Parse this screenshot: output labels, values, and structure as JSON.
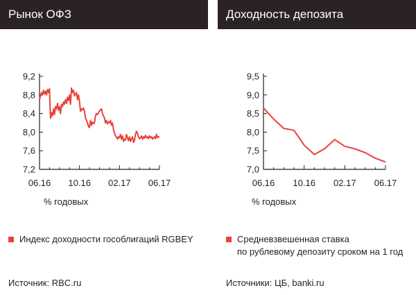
{
  "left": {
    "title": "Рынок ОФЗ",
    "unit": "% годовых",
    "legend": "Индекс доходности гособлигаций RGBEY",
    "source": "Источник: RBC.ru"
  },
  "right": {
    "title": "Доходность депозита",
    "unit": "% годовых",
    "legend_line1": "Средневзвешенная ставка",
    "legend_line2": "по рублевому депозиту сроком на 1 год",
    "source": "Источники: ЦБ, banki.ru"
  },
  "colors": {
    "series": "#e8413c",
    "title_bg": "#2b2223",
    "axis": "#231f20"
  },
  "chart_data": [
    {
      "type": "line",
      "title": "Рынок ОФЗ",
      "ylabel": "% годовых",
      "ylim": [
        7.2,
        9.2
      ],
      "yticks": [
        7.2,
        7.6,
        8.0,
        8.4,
        8.8,
        9.2
      ],
      "ytick_labels": [
        "7,2",
        "7,6",
        "8,0",
        "8,4",
        "8,8",
        "9,2"
      ],
      "xlim": [
        0,
        12
      ],
      "xticks": [
        0,
        4,
        8,
        12
      ],
      "xtick_labels": [
        "06.16",
        "10.16",
        "02.17",
        "06.17"
      ],
      "grid": false,
      "series": [
        {
          "name": "Индекс доходности гособлигаций RGBEY",
          "color": "#e8413c",
          "x": [
            0,
            0.1,
            0.2,
            0.3,
            0.4,
            0.5,
            0.6,
            0.7,
            0.8,
            0.9,
            1.0,
            1.05,
            1.1,
            1.2,
            1.3,
            1.4,
            1.5,
            1.6,
            1.7,
            1.8,
            1.9,
            2.0,
            2.1,
            2.2,
            2.3,
            2.4,
            2.5,
            2.6,
            2.7,
            2.8,
            2.9,
            3.0,
            3.1,
            3.2,
            3.3,
            3.4,
            3.5,
            3.6,
            3.7,
            3.8,
            3.9,
            4.0,
            4.1,
            4.2,
            4.3,
            4.4,
            4.5,
            4.6,
            4.7,
            4.8,
            4.9,
            5.0,
            5.1,
            5.2,
            5.3,
            5.4,
            5.5,
            5.6,
            5.7,
            5.8,
            5.9,
            6.0,
            6.1,
            6.2,
            6.3,
            6.4,
            6.5,
            6.6,
            6.7,
            6.8,
            6.9,
            7.0,
            7.1,
            7.2,
            7.3,
            7.4,
            7.5,
            7.6,
            7.7,
            7.8,
            7.9,
            8.0,
            8.1,
            8.2,
            8.3,
            8.4,
            8.5,
            8.6,
            8.7,
            8.8,
            8.9,
            9.0,
            9.1,
            9.2,
            9.3,
            9.4,
            9.5,
            9.6,
            9.7,
            9.8,
            9.9,
            10.0,
            10.1,
            10.2,
            10.3,
            10.4,
            10.5,
            10.6,
            10.7,
            10.8,
            10.9,
            11.0,
            11.1,
            11.2,
            11.3,
            11.4,
            11.5,
            11.6,
            11.7,
            11.8,
            11.9,
            12.0
          ],
          "values": [
            8.7,
            8.78,
            8.85,
            8.8,
            8.9,
            8.82,
            8.88,
            8.8,
            8.92,
            8.85,
            8.93,
            8.6,
            8.3,
            8.42,
            8.35,
            8.5,
            8.38,
            8.55,
            8.5,
            8.62,
            8.47,
            8.55,
            8.4,
            8.6,
            8.55,
            8.65,
            8.6,
            8.7,
            8.62,
            8.75,
            8.68,
            8.8,
            8.6,
            8.95,
            8.85,
            8.9,
            8.78,
            8.82,
            8.85,
            8.7,
            8.8,
            8.65,
            8.45,
            8.5,
            8.48,
            8.52,
            8.45,
            8.3,
            8.25,
            8.2,
            8.12,
            8.1,
            8.25,
            8.15,
            8.22,
            8.18,
            8.2,
            8.35,
            8.4,
            8.38,
            8.42,
            8.45,
            8.48,
            8.5,
            8.4,
            8.35,
            8.3,
            8.2,
            8.25,
            8.18,
            8.22,
            8.2,
            8.25,
            8.15,
            8.2,
            8.05,
            7.98,
            7.92,
            7.9,
            7.85,
            7.9,
            7.88,
            7.95,
            7.85,
            7.92,
            7.8,
            7.85,
            7.83,
            7.95,
            7.88,
            7.82,
            7.9,
            7.8,
            7.85,
            7.9,
            7.78,
            7.82,
            7.95,
            8.02,
            7.98,
            7.9,
            7.86,
            7.88,
            7.92,
            7.85,
            7.9,
            7.87,
            7.93,
            7.88,
            7.9,
            7.86,
            7.92,
            7.88,
            7.9,
            7.85,
            7.88,
            7.9,
            7.86,
            7.95,
            7.88,
            7.9,
            7.9
          ]
        }
      ]
    },
    {
      "type": "line",
      "title": "Доходность депозита",
      "ylabel": "% годовых",
      "ylim": [
        7.0,
        9.5
      ],
      "yticks": [
        7.0,
        7.5,
        8.0,
        8.5,
        9.0,
        9.5
      ],
      "ytick_labels": [
        "7,0",
        "7,5",
        "8,0",
        "8,5",
        "9,0",
        "9,5"
      ],
      "xlim": [
        0,
        12
      ],
      "xticks": [
        0,
        4,
        8,
        12
      ],
      "xtick_labels": [
        "06.16",
        "10.16",
        "02.17",
        "06.17"
      ],
      "grid": false,
      "series": [
        {
          "name": "Средневзвешенная ставка по рублевому депозиту сроком на 1 год",
          "color": "#e8413c",
          "x": [
            0,
            1,
            2,
            3,
            4,
            5,
            6,
            7,
            8,
            9,
            10,
            11,
            12
          ],
          "values": [
            8.65,
            8.35,
            8.1,
            8.05,
            7.65,
            7.4,
            7.55,
            7.8,
            7.62,
            7.55,
            7.45,
            7.3,
            7.2
          ]
        }
      ]
    }
  ]
}
